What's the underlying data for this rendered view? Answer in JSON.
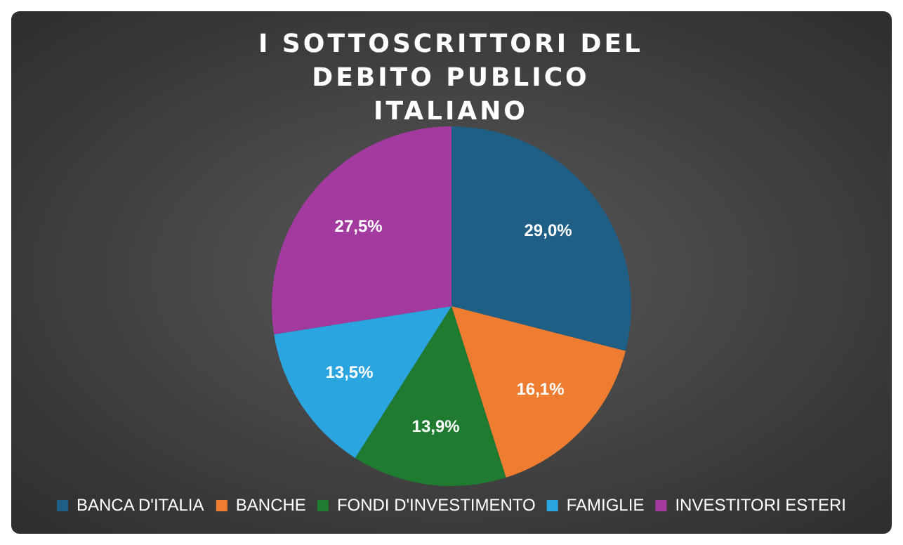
{
  "chart_data": {
    "type": "pie",
    "title": "I SOTTOSCRITTORI DEL DEBITO PUBLICO ITALIANO",
    "categories": [
      "BANCA D'ITALIA",
      "BANCHE",
      "FONDI D'INVESTIMENTO",
      "FAMIGLIE",
      "INVESTITORI ESTERI"
    ],
    "values": [
      29.0,
      16.1,
      13.9,
      13.5,
      27.5
    ],
    "colors": [
      "#1f5f86",
      "#ee7d31",
      "#1e7b2f",
      "#2aa5df",
      "#a33aa0"
    ],
    "value_labels": [
      "29,0%",
      "16,1%",
      "13,9%",
      "13,5%",
      "27,5%"
    ],
    "legend": "bottom"
  }
}
